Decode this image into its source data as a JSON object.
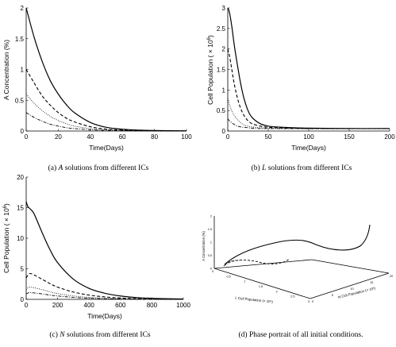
{
  "chart_data": [
    {
      "type": "line",
      "caption": "(a) A solutions from different ICs",
      "caption_var": "A",
      "caption_rest": " solutions from different ICs",
      "caption_tag": "(a) ",
      "xlabel": "Time(Days)",
      "ylabel": "A Concentration (%)",
      "xlim": [
        0,
        100
      ],
      "ylim": [
        0,
        2
      ],
      "xticks": [
        0,
        20,
        40,
        60,
        80,
        100
      ],
      "yticks": [
        0,
        0.5,
        1,
        1.5,
        2
      ],
      "xtick_labels": [
        "0",
        "20",
        "40",
        "60",
        "80",
        "100"
      ],
      "ytick_labels": [
        "0",
        "0.5",
        "1",
        "1.5",
        "2"
      ],
      "series": [
        {
          "style": "solid",
          "x": [
            0,
            5,
            10,
            15,
            20,
            25,
            30,
            40,
            50,
            60,
            70,
            80,
            90,
            100
          ],
          "y": [
            2.0,
            1.52,
            1.13,
            0.82,
            0.6,
            0.43,
            0.3,
            0.14,
            0.06,
            0.03,
            0.015,
            0.008,
            0.005,
            0.003
          ]
        },
        {
          "style": "dashed",
          "x": [
            0,
            5,
            10,
            15,
            20,
            25,
            30,
            40,
            50,
            60,
            70,
            80,
            90,
            100
          ],
          "y": [
            1.0,
            0.78,
            0.57,
            0.42,
            0.3,
            0.21,
            0.15,
            0.07,
            0.03,
            0.015,
            0.008,
            0.005,
            0.003,
            0.002
          ]
        },
        {
          "style": "dotted",
          "x": [
            0,
            5,
            10,
            15,
            20,
            25,
            30,
            40,
            50,
            60,
            70,
            80,
            90,
            100
          ],
          "y": [
            0.6,
            0.45,
            0.33,
            0.24,
            0.17,
            0.12,
            0.08,
            0.04,
            0.02,
            0.01,
            0.005,
            0.003,
            0.002,
            0.001
          ]
        },
        {
          "style": "dashdot",
          "x": [
            0,
            5,
            10,
            15,
            20,
            25,
            30,
            40,
            50,
            60,
            70,
            80,
            90,
            100
          ],
          "y": [
            0.3,
            0.22,
            0.16,
            0.11,
            0.08,
            0.055,
            0.04,
            0.02,
            0.01,
            0.005,
            0.003,
            0.002,
            0.001,
            0.001
          ]
        }
      ]
    },
    {
      "type": "line",
      "caption_tag": "(b) ",
      "caption_var": "L",
      "caption_rest": " solutions from different ICs",
      "xlabel": "Time(Days)",
      "ylabel_main": "Cell Population ( × 10",
      "ylabel_exp": "6",
      "ylabel_close": ")",
      "xlim": [
        0,
        200
      ],
      "ylim": [
        0,
        3
      ],
      "xticks": [
        0,
        50,
        100,
        150,
        200
      ],
      "yticks": [
        0,
        0.5,
        1,
        1.5,
        2,
        2.5,
        3
      ],
      "xtick_labels": [
        "0",
        "50",
        "100",
        "150",
        "200"
      ],
      "ytick_labels": [
        "0",
        "0.5",
        "1",
        "1.5",
        "2",
        "2.5",
        "3"
      ],
      "series": [
        {
          "style": "solid",
          "x": [
            0,
            2,
            5,
            8,
            12,
            16,
            20,
            25,
            30,
            40,
            50,
            60,
            80,
            100,
            150,
            200
          ],
          "y": [
            3.0,
            2.9,
            2.55,
            2.1,
            1.6,
            1.15,
            0.8,
            0.5,
            0.33,
            0.18,
            0.12,
            0.1,
            0.08,
            0.07,
            0.06,
            0.06
          ]
        },
        {
          "style": "dashed",
          "x": [
            0,
            2,
            5,
            8,
            12,
            16,
            20,
            25,
            30,
            40,
            50,
            60,
            80,
            100,
            150,
            200
          ],
          "y": [
            2.0,
            1.85,
            1.5,
            1.15,
            0.8,
            0.55,
            0.38,
            0.25,
            0.18,
            0.12,
            0.09,
            0.08,
            0.07,
            0.06,
            0.06,
            0.06
          ]
        },
        {
          "style": "dotted",
          "x": [
            0,
            2,
            5,
            8,
            12,
            16,
            20,
            25,
            30,
            40,
            50,
            60,
            80,
            100,
            150,
            200
          ],
          "y": [
            0.8,
            0.65,
            0.5,
            0.38,
            0.28,
            0.2,
            0.15,
            0.12,
            0.1,
            0.08,
            0.07,
            0.06,
            0.06,
            0.06,
            0.06,
            0.06
          ]
        },
        {
          "style": "dashdot",
          "x": [
            0,
            2,
            5,
            8,
            12,
            16,
            20,
            25,
            30,
            40,
            50,
            60,
            80,
            100,
            150,
            200
          ],
          "y": [
            0.3,
            0.25,
            0.2,
            0.16,
            0.12,
            0.1,
            0.09,
            0.08,
            0.07,
            0.06,
            0.06,
            0.06,
            0.06,
            0.06,
            0.06,
            0.06
          ]
        }
      ]
    },
    {
      "type": "line",
      "caption_tag": "(c) ",
      "caption_var": "N",
      "caption_rest": " solutions from different ICs",
      "xlabel": "Time(Days)",
      "ylabel_main": "Cell Population ( × 10",
      "ylabel_exp": "6",
      "ylabel_close": ")",
      "xlim": [
        0,
        1000
      ],
      "ylim": [
        0,
        20
      ],
      "xticks": [
        0,
        200,
        400,
        600,
        800,
        1000
      ],
      "yticks": [
        0,
        5,
        10,
        15,
        20
      ],
      "xtick_labels": [
        "0",
        "200",
        "400",
        "600",
        "800",
        "1000"
      ],
      "ytick_labels": [
        "0",
        "5",
        "10",
        "15",
        "20"
      ],
      "series": [
        {
          "style": "solid",
          "x": [
            0,
            10,
            25,
            50,
            100,
            150,
            200,
            300,
            400,
            500,
            600,
            700,
            800,
            900,
            1000
          ],
          "y": [
            16,
            15.2,
            14.8,
            14.0,
            11.0,
            8.2,
            6.0,
            3.3,
            1.8,
            1.0,
            0.55,
            0.3,
            0.17,
            0.1,
            0.06
          ]
        },
        {
          "style": "dashed",
          "x": [
            0,
            20,
            50,
            100,
            150,
            200,
            300,
            400,
            500,
            600,
            700,
            800,
            900,
            1000
          ],
          "y": [
            3.5,
            4.2,
            4.0,
            3.3,
            2.6,
            2.0,
            1.2,
            0.7,
            0.4,
            0.22,
            0.12,
            0.07,
            0.04,
            0.02
          ]
        },
        {
          "style": "dotted",
          "x": [
            0,
            20,
            50,
            100,
            150,
            200,
            300,
            400,
            500,
            600,
            700,
            800,
            900,
            1000
          ],
          "y": [
            1.6,
            2.0,
            1.9,
            1.6,
            1.25,
            0.95,
            0.55,
            0.32,
            0.18,
            0.1,
            0.06,
            0.03,
            0.02,
            0.01
          ]
        },
        {
          "style": "dashdot",
          "x": [
            0,
            20,
            50,
            100,
            150,
            200,
            300,
            400,
            500,
            600,
            700,
            800,
            900,
            1000
          ],
          "y": [
            0.9,
            1.1,
            1.05,
            0.9,
            0.7,
            0.55,
            0.32,
            0.18,
            0.1,
            0.06,
            0.03,
            0.02,
            0.01,
            0.005
          ]
        }
      ]
    },
    {
      "type": "line3d",
      "caption": "(d) Phase portrait of all initial conditions.",
      "zlabel": "A Concentration (%)",
      "xlabel": "L Cell Population (× 10⁶)",
      "ylabel": "N Cell Population (× 10⁶)",
      "ztick_labels": [
        "0",
        "0.5",
        "1",
        "1.5",
        "2"
      ],
      "xtick_labels": [
        "0",
        "0.5",
        "1",
        "1.5",
        "2",
        "2.5",
        "3"
      ],
      "ytick_labels": [
        "0",
        "5",
        "10",
        "15",
        "20"
      ]
    }
  ]
}
